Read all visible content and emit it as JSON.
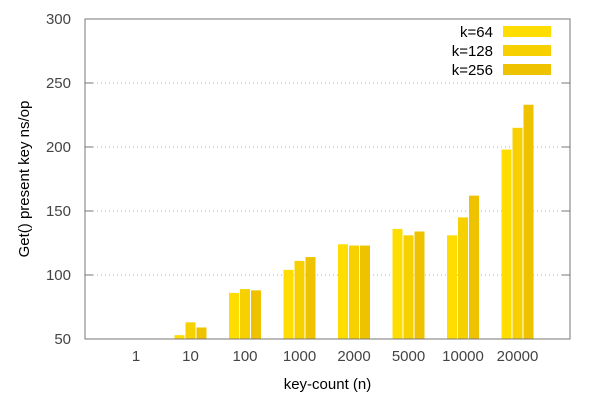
{
  "chart_data": {
    "type": "bar",
    "title": "",
    "xlabel": "key-count (n)",
    "ylabel": "Get() present key ns/op",
    "ylim": [
      50,
      300
    ],
    "yticks": [
      50,
      100,
      150,
      200,
      250,
      300
    ],
    "grid": true,
    "legend_position": "top-right",
    "categories": [
      "1",
      "10",
      "100",
      "1000",
      "2000",
      "5000",
      "10000",
      "20000"
    ],
    "series": [
      {
        "name": "k=64",
        "color": "#ffdd00",
        "values": [
          null,
          53,
          86,
          104,
          124,
          136,
          131,
          198
        ]
      },
      {
        "name": "k=128",
        "color": "#f7d000",
        "values": [
          null,
          63,
          89,
          111,
          123,
          131,
          145,
          215
        ]
      },
      {
        "name": "k=256",
        "color": "#efc200",
        "values": [
          null,
          59,
          88,
          114,
          123,
          134,
          162,
          233
        ]
      }
    ]
  }
}
